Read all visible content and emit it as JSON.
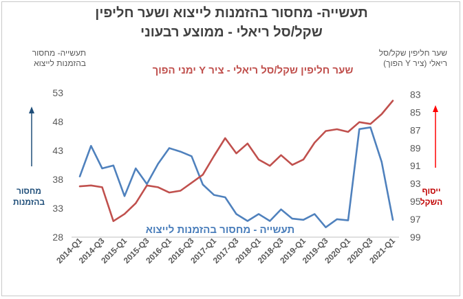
{
  "title_line1": "תעשייה- מחסור בהזמנות לייצוא ושער חליפין",
  "title_line2": "שקל/סל ריאלי - ממוצע רבעוני",
  "left_axis_title": "תעשייה- מחסור בהזמנות לייצוא",
  "right_axis_title": "שער חליפין שקל/סל ריאלי (ציר Y הפוך)",
  "left_arrow_label": "מחסור בהזמנות",
  "right_arrow_label": "ייסוף השקל",
  "annotation_red": "שער חליפין שקל/סל ריאלי - ציר Y ימני הפוך",
  "annotation_blue": "תעשייה - מחסור בהזמנות לייצוא",
  "colors": {
    "series_blue": "#4f81bd",
    "series_red": "#c0504d",
    "arrow_blue": "#1f4e79",
    "arrow_red": "#ff0000"
  },
  "chart_data": {
    "type": "line",
    "categories": [
      "2014-Q1",
      "2014-Q2",
      "2014-Q3",
      "2014-Q4",
      "2015-Q1",
      "2015-Q2",
      "2015-Q3",
      "2015-Q4",
      "2016-Q1",
      "2016-Q2",
      "2016-Q3",
      "2016-Q4",
      "2017-Q1",
      "2017-Q2",
      "2017-Q3",
      "2017-Q4",
      "2018-Q1",
      "2018-Q2",
      "2018-Q3",
      "2018-Q4",
      "2019-Q1",
      "2019-Q2",
      "2019-Q3",
      "2019-Q4",
      "2020-Q1",
      "2020-Q2",
      "2020-Q3",
      "2020-Q4",
      "2021-Q1"
    ],
    "tick_labels": [
      "2014-Q1",
      "2014-Q3",
      "2015-Q1",
      "2015-Q3",
      "2016-Q1",
      "2016-Q3",
      "2017-Q1",
      "2017-Q3",
      "2018-Q1",
      "2018-Q3",
      "2019-Q1",
      "2019-Q3",
      "2020-Q1",
      "2020-Q3",
      "2021-Q1"
    ],
    "series": [
      {
        "name": "תעשייה - מחסור בהזמנות לייצוא",
        "axis": "left",
        "values": [
          38.5,
          43.8,
          39.9,
          40.4,
          35.1,
          39.9,
          37.2,
          40.7,
          43.4,
          42.8,
          42.0,
          37.1,
          35.3,
          34.9,
          32.0,
          30.8,
          32.0,
          30.8,
          32.8,
          31.2,
          31.0,
          32.0,
          29.7,
          31.1,
          30.9,
          46.7,
          47.0,
          41.0,
          31.0
        ]
      },
      {
        "name": "שער חליפין שקל/סל ריאלי",
        "axis": "right",
        "values": [
          93.3,
          93.2,
          93.4,
          97.2,
          96.4,
          95.2,
          93.2,
          93.4,
          94.0,
          93.8,
          92.9,
          92.0,
          89.9,
          87.9,
          89.6,
          88.5,
          90.3,
          91.0,
          89.8,
          90.9,
          90.3,
          88.4,
          87.1,
          86.9,
          87.2,
          86.1,
          86.3,
          85.2,
          83.7
        ]
      }
    ],
    "y_left": {
      "ticks": [
        28,
        33,
        38,
        43,
        48,
        53
      ],
      "ylim": [
        28,
        55
      ]
    },
    "y_right": {
      "ticks": [
        83,
        85,
        87,
        89,
        91,
        93,
        95,
        97,
        99
      ],
      "ylim": [
        81.5,
        99
      ],
      "inverted": true
    },
    "grid": false,
    "legend": "none"
  }
}
